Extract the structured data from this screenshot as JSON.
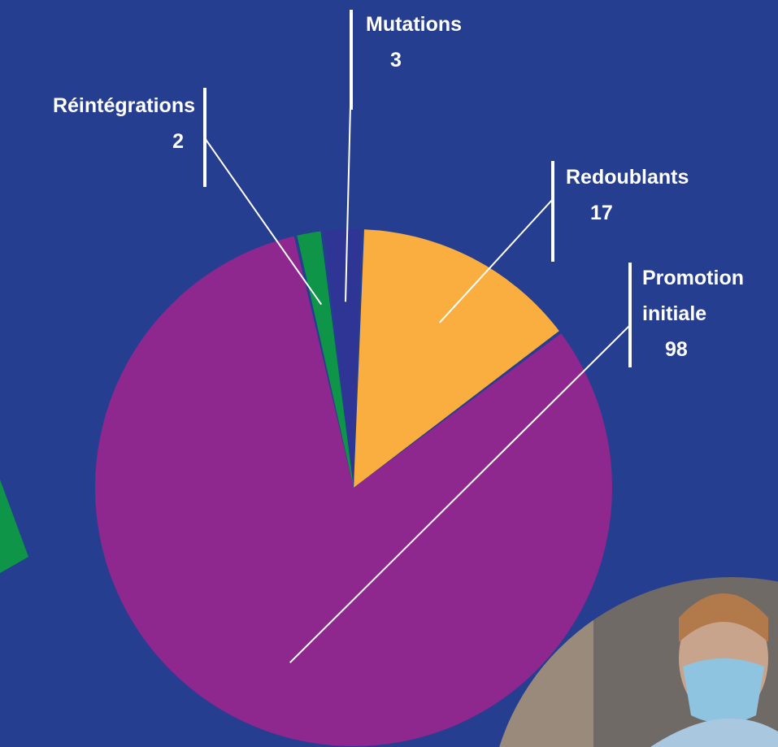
{
  "chart_data": {
    "type": "pie",
    "categories": [
      "Redoublants",
      "Promotion initiale",
      "Réintégrations",
      "Mutations"
    ],
    "values": [
      17,
      98,
      2,
      3
    ],
    "colors": [
      "#f9ae3f",
      "#8e278e",
      "#0f9548",
      "#2e3594"
    ]
  }
}
